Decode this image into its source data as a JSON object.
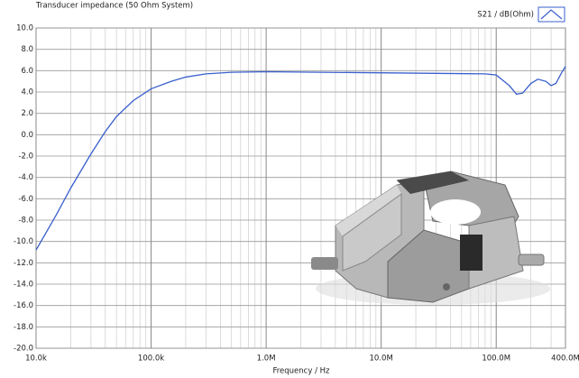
{
  "chart_data": {
    "type": "line",
    "title": "Transducer impedance (50 Ohm System)",
    "x_label": "Frequency / Hz",
    "xscale": "log",
    "grid": true,
    "minor_grid": true,
    "legend": "top-right",
    "xlim": [
      10000,
      400000000
    ],
    "xticks": [
      {
        "value": 10000,
        "label": "10.0k"
      },
      {
        "value": 100000,
        "label": "100.0k"
      },
      {
        "value": 1000000,
        "label": "1.0M"
      },
      {
        "value": 10000000,
        "label": "10.0M"
      },
      {
        "value": 100000000,
        "label": "100.0M"
      },
      {
        "value": 400000000,
        "label": "400.0M"
      }
    ],
    "ylim": [
      -20,
      10
    ],
    "yticks": [
      {
        "value": 10,
        "label": "10.0"
      },
      {
        "value": 8,
        "label": "8.0"
      },
      {
        "value": 6,
        "label": "6.0"
      },
      {
        "value": 4,
        "label": "4.0"
      },
      {
        "value": 2,
        "label": "2.0"
      },
      {
        "value": 0,
        "label": "0.0"
      },
      {
        "value": -2,
        "label": "-2.0"
      },
      {
        "value": -4,
        "label": "-4.0"
      },
      {
        "value": -6,
        "label": "-6.0"
      },
      {
        "value": -8,
        "label": "-8.0"
      },
      {
        "value": -10,
        "label": "-10.0"
      },
      {
        "value": -12,
        "label": "-12.0"
      },
      {
        "value": -14,
        "label": "-14.0"
      },
      {
        "value": -16,
        "label": "-16.0"
      },
      {
        "value": -18,
        "label": "-18.0"
      },
      {
        "value": -20,
        "label": "-20.0"
      }
    ],
    "x": [
      10000,
      15000,
      20000,
      30000,
      40000,
      50000,
      70000,
      100000,
      150000,
      200000,
      300000,
      500000,
      1000000,
      3000000,
      10000000,
      30000000,
      80000000,
      100000000,
      130000000,
      150000000,
      170000000,
      200000000,
      230000000,
      270000000,
      300000000,
      330000000,
      370000000,
      400000000
    ],
    "series": [
      {
        "name": "S21 / dB(Ohm)",
        "color": "#3a5fcd",
        "values": [
          -10.8,
          -7.5,
          -5.0,
          -1.8,
          0.3,
          1.7,
          3.2,
          4.3,
          5.0,
          5.4,
          5.7,
          5.85,
          5.9,
          5.85,
          5.8,
          5.75,
          5.7,
          5.6,
          4.6,
          3.8,
          3.9,
          4.8,
          5.2,
          5.0,
          4.6,
          4.8,
          5.8,
          6.4
        ]
      }
    ]
  }
}
